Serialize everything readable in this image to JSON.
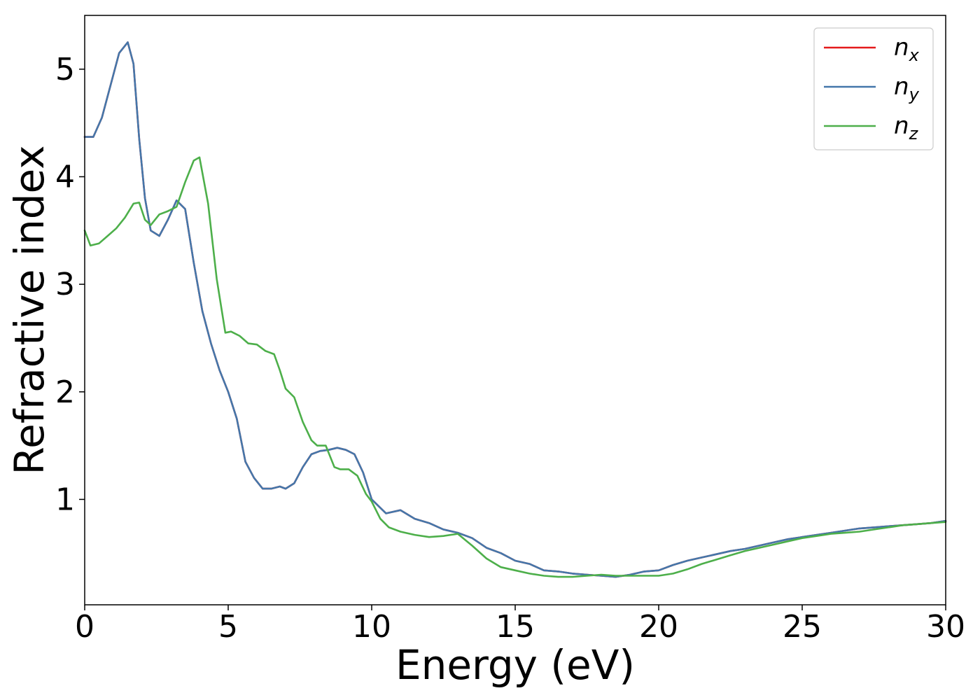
{
  "chart_data": {
    "type": "line",
    "xlabel": "Energy (eV)",
    "ylabel": "Refractive index",
    "xlim": [
      0,
      30
    ],
    "ylim": [
      0.02,
      5.5
    ],
    "xticks": [
      0,
      5,
      10,
      15,
      20,
      25,
      30
    ],
    "xtick_labels": [
      "0",
      "5",
      "10",
      "15",
      "20",
      "25",
      "30"
    ],
    "yticks": [
      1,
      2,
      3,
      4,
      5
    ],
    "ytick_labels": [
      "1",
      "2",
      "3",
      "4",
      "5"
    ],
    "grid": false,
    "legend_position": "top-right",
    "series": [
      {
        "name": "n_x",
        "label_base": "n",
        "label_sub": "x",
        "color": "#e41a1c",
        "x": [
          0,
          0.3,
          0.6,
          0.9,
          1.2,
          1.5,
          1.7,
          1.9,
          2.1,
          2.3,
          2.6,
          2.9,
          3.2,
          3.5,
          3.8,
          4.1,
          4.4,
          4.7,
          5.0,
          5.3,
          5.6,
          5.9,
          6.2,
          6.5,
          6.8,
          7.0,
          7.3,
          7.6,
          7.9,
          8.2,
          8.5,
          8.8,
          9.1,
          9.4,
          9.7,
          10.0,
          10.5,
          11.0,
          11.5,
          12.0,
          12.5,
          13.0,
          13.5,
          14.0,
          14.5,
          15.0,
          15.5,
          16.0,
          16.5,
          17.0,
          17.5,
          18.0,
          18.5,
          19.0,
          19.5,
          20.0,
          20.5,
          21.0,
          21.5,
          22.0,
          22.5,
          23.0,
          23.5,
          24.0,
          24.5,
          25.0,
          25.5,
          26.0,
          26.5,
          27.0,
          27.5,
          28.0,
          28.5,
          29.0,
          29.5,
          30.0
        ],
        "y": [
          4.37,
          4.37,
          4.55,
          4.85,
          5.15,
          5.25,
          5.05,
          4.35,
          3.8,
          3.5,
          3.45,
          3.6,
          3.78,
          3.7,
          3.2,
          2.75,
          2.45,
          2.2,
          2.0,
          1.75,
          1.35,
          1.2,
          1.1,
          1.1,
          1.12,
          1.1,
          1.15,
          1.3,
          1.42,
          1.45,
          1.46,
          1.48,
          1.46,
          1.42,
          1.25,
          1.0,
          0.87,
          0.9,
          0.82,
          0.78,
          0.72,
          0.69,
          0.64,
          0.55,
          0.5,
          0.43,
          0.4,
          0.34,
          0.33,
          0.31,
          0.3,
          0.29,
          0.28,
          0.3,
          0.33,
          0.34,
          0.39,
          0.43,
          0.46,
          0.49,
          0.52,
          0.54,
          0.57,
          0.6,
          0.63,
          0.65,
          0.67,
          0.69,
          0.71,
          0.73,
          0.74,
          0.75,
          0.76,
          0.77,
          0.78,
          0.8
        ]
      },
      {
        "name": "n_y",
        "label_base": "n",
        "label_sub": "y",
        "color": "#4477aa",
        "x": [
          0,
          0.3,
          0.6,
          0.9,
          1.2,
          1.5,
          1.7,
          1.9,
          2.1,
          2.3,
          2.6,
          2.9,
          3.2,
          3.5,
          3.8,
          4.1,
          4.4,
          4.7,
          5.0,
          5.3,
          5.6,
          5.9,
          6.2,
          6.5,
          6.8,
          7.0,
          7.3,
          7.6,
          7.9,
          8.2,
          8.5,
          8.8,
          9.1,
          9.4,
          9.7,
          10.0,
          10.5,
          11.0,
          11.5,
          12.0,
          12.5,
          13.0,
          13.5,
          14.0,
          14.5,
          15.0,
          15.5,
          16.0,
          16.5,
          17.0,
          17.5,
          18.0,
          18.5,
          19.0,
          19.5,
          20.0,
          20.5,
          21.0,
          21.5,
          22.0,
          22.5,
          23.0,
          23.5,
          24.0,
          24.5,
          25.0,
          25.5,
          26.0,
          26.5,
          27.0,
          27.5,
          28.0,
          28.5,
          29.0,
          29.5,
          30.0
        ],
        "y": [
          4.37,
          4.37,
          4.55,
          4.85,
          5.15,
          5.25,
          5.05,
          4.35,
          3.8,
          3.5,
          3.45,
          3.6,
          3.78,
          3.7,
          3.2,
          2.75,
          2.45,
          2.2,
          2.0,
          1.75,
          1.35,
          1.2,
          1.1,
          1.1,
          1.12,
          1.1,
          1.15,
          1.3,
          1.42,
          1.45,
          1.46,
          1.48,
          1.46,
          1.42,
          1.25,
          1.0,
          0.87,
          0.9,
          0.82,
          0.78,
          0.72,
          0.69,
          0.64,
          0.55,
          0.5,
          0.43,
          0.4,
          0.34,
          0.33,
          0.31,
          0.3,
          0.29,
          0.28,
          0.3,
          0.33,
          0.34,
          0.39,
          0.43,
          0.46,
          0.49,
          0.52,
          0.54,
          0.57,
          0.6,
          0.63,
          0.65,
          0.67,
          0.69,
          0.71,
          0.73,
          0.74,
          0.75,
          0.76,
          0.77,
          0.78,
          0.8
        ]
      },
      {
        "name": "n_z",
        "label_base": "n",
        "label_sub": "z",
        "color": "#4daf4a",
        "x": [
          0,
          0.2,
          0.5,
          0.8,
          1.1,
          1.4,
          1.7,
          1.9,
          2.1,
          2.3,
          2.6,
          2.9,
          3.2,
          3.5,
          3.8,
          4.0,
          4.3,
          4.6,
          4.9,
          5.1,
          5.4,
          5.7,
          6.0,
          6.3,
          6.6,
          6.8,
          7.0,
          7.3,
          7.6,
          7.9,
          8.1,
          8.4,
          8.7,
          8.9,
          9.2,
          9.5,
          9.8,
          10.0,
          10.3,
          10.6,
          11.0,
          11.5,
          12.0,
          12.5,
          13.0,
          13.5,
          14.0,
          14.5,
          15.0,
          15.5,
          16.0,
          16.5,
          17.0,
          17.5,
          18.0,
          18.5,
          19.0,
          19.5,
          20.0,
          20.5,
          21.0,
          21.5,
          22.0,
          22.5,
          23.0,
          23.5,
          24.0,
          24.5,
          25.0,
          25.5,
          26.0,
          26.5,
          27.0,
          27.5,
          28.0,
          28.5,
          29.0,
          29.5,
          30.0
        ],
        "y": [
          3.5,
          3.36,
          3.38,
          3.45,
          3.52,
          3.62,
          3.75,
          3.76,
          3.6,
          3.55,
          3.65,
          3.68,
          3.72,
          3.95,
          4.15,
          4.18,
          3.75,
          3.05,
          2.55,
          2.56,
          2.52,
          2.45,
          2.44,
          2.38,
          2.35,
          2.2,
          2.03,
          1.95,
          1.72,
          1.55,
          1.5,
          1.5,
          1.3,
          1.28,
          1.28,
          1.22,
          1.05,
          0.98,
          0.82,
          0.74,
          0.7,
          0.67,
          0.65,
          0.66,
          0.68,
          0.57,
          0.45,
          0.37,
          0.34,
          0.31,
          0.29,
          0.28,
          0.28,
          0.29,
          0.3,
          0.29,
          0.29,
          0.29,
          0.29,
          0.31,
          0.35,
          0.4,
          0.44,
          0.48,
          0.52,
          0.55,
          0.58,
          0.61,
          0.64,
          0.66,
          0.68,
          0.69,
          0.7,
          0.72,
          0.74,
          0.76,
          0.77,
          0.78,
          0.79
        ]
      }
    ]
  }
}
